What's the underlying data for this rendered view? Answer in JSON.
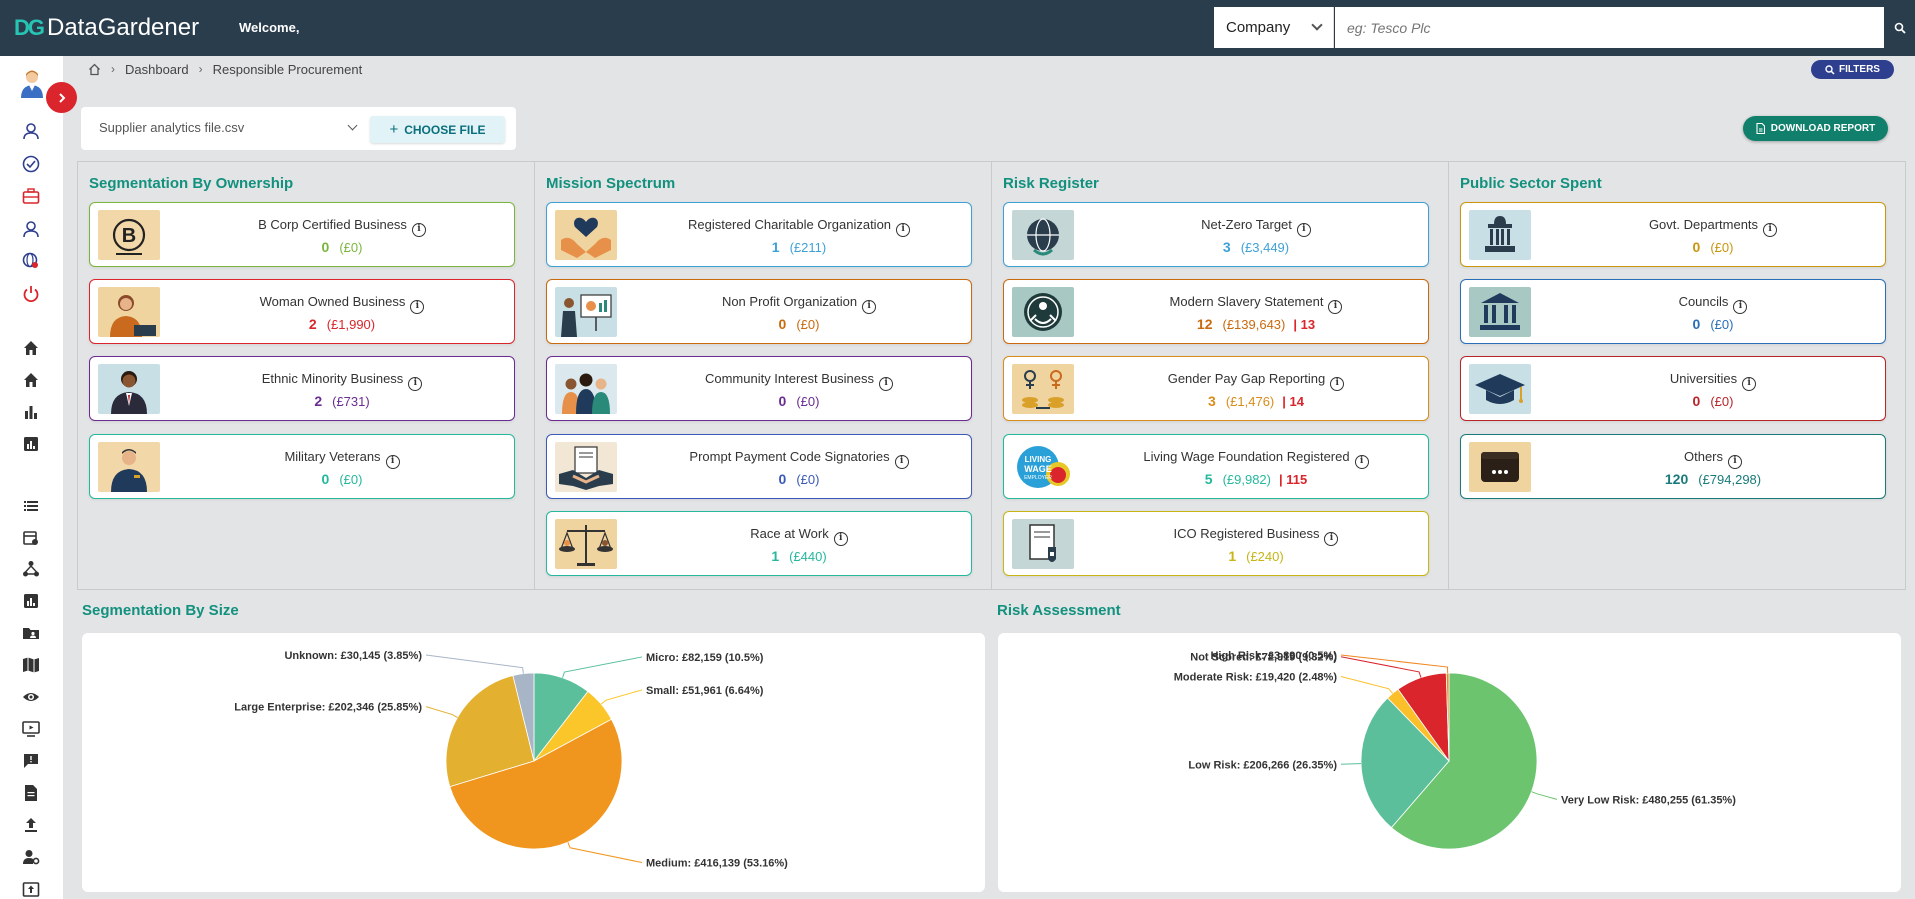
{
  "app": {
    "brand_mark": "DG",
    "brand_name": "DataGardener",
    "welcome": "Welcome,"
  },
  "search": {
    "type": "Company",
    "placeholder": "eg: Tesco Plc"
  },
  "breadcrumb": {
    "items": [
      "Dashboard",
      "Responsible Procurement"
    ]
  },
  "filters_label": "FILTERS",
  "file": {
    "selected": "Supplier analytics file.csv",
    "choose_label": "CHOOSE FILE"
  },
  "download_label": "DOWNLOAD REPORT",
  "sidebar_icons": [
    "user-avatar-icon",
    "user-icon",
    "check-circle-icon",
    "briefcase-icon",
    "user-outline-icon",
    "globe-search-icon",
    "power-icon",
    "home-icon",
    "home-alt-icon",
    "bar-chart-icon",
    "analytics-icon",
    "list-icon",
    "calendar-search-icon",
    "network-icon",
    "report-icon",
    "folder-user-icon",
    "map-icon",
    "eye-icon",
    "monitor-icon",
    "feedback-icon",
    "document-icon",
    "upload-icon",
    "user-settings-icon",
    "export-icon"
  ],
  "panels": [
    {
      "title": "Segmentation By Ownership",
      "cards": [
        {
          "icon": "bcorp-icon",
          "label": "B Corp Certified Business",
          "count": "0",
          "amount": "(£0)",
          "extra": "",
          "color": "#7ab63f",
          "bg": "#f2d7a8"
        },
        {
          "icon": "woman-owner-icon",
          "label": "Woman Owned Business",
          "count": "2",
          "amount": "(£1,990)",
          "extra": "",
          "color": "#d9252b",
          "bg": "#f0d4a0"
        },
        {
          "icon": "ethnic-minority-icon",
          "label": "Ethnic Minority Business",
          "count": "2",
          "amount": "(£731)",
          "extra": "",
          "color": "#6a2c91",
          "bg": "#c9dfe6"
        },
        {
          "icon": "military-veteran-icon",
          "label": "Military Veterans",
          "count": "0",
          "amount": "(£0)",
          "extra": "",
          "color": "#25b89c",
          "bg": "#f2d7a8"
        }
      ]
    },
    {
      "title": "Mission Spectrum",
      "cards": [
        {
          "icon": "charity-hands-icon",
          "label": "Registered Charitable Organization",
          "count": "1",
          "amount": "(£211)",
          "extra": "",
          "color": "#3ea1d6",
          "bg": "#f0d4a0"
        },
        {
          "icon": "presentation-icon",
          "label": "Non Profit Organization",
          "count": "0",
          "amount": "(£0)",
          "extra": "",
          "color": "#c96a0e",
          "bg": "#c9dfe6"
        },
        {
          "icon": "community-icon",
          "label": "Community Interest Business",
          "count": "0",
          "amount": "(£0)",
          "extra": "",
          "color": "#6a2c91",
          "bg": "#dbe9ef"
        },
        {
          "icon": "handshake-icon",
          "label": "Prompt Payment Code Signatories",
          "count": "0",
          "amount": "(£0)",
          "extra": "",
          "color": "#3a59b8",
          "bg": "#f2e7d5"
        },
        {
          "icon": "scales-icon",
          "label": "Race at Work",
          "count": "1",
          "amount": "(£440)",
          "extra": "",
          "color": "#25b89c",
          "bg": "#f0d4a0"
        }
      ]
    },
    {
      "title": "Risk Register",
      "cards": [
        {
          "icon": "net-zero-globe-icon",
          "label": "Net-Zero Target",
          "count": "3",
          "amount": "(£3,449)",
          "extra": "",
          "color": "#3ea1d6",
          "bg": "#c4d6d6"
        },
        {
          "icon": "modern-slavery-icon",
          "label": "Modern Slavery Statement",
          "count": "12",
          "amount": "(£139,643)",
          "extra": "| 13",
          "color": "#c96a0e",
          "bg": "#a8c8c4"
        },
        {
          "icon": "gender-pay-icon",
          "label": "Gender Pay Gap Reporting",
          "count": "3",
          "amount": "(£1,476)",
          "extra": "| 14",
          "color": "#d98c1a",
          "bg": "#f0d4a0"
        },
        {
          "icon": "living-wage-icon",
          "label": "Living Wage Foundation Registered",
          "count": "5",
          "amount": "(£9,982)",
          "extra": "| 115",
          "color": "#25b89c",
          "bg": "#ffffff"
        },
        {
          "icon": "ico-document-icon",
          "label": "ICO Registered Business",
          "count": "1",
          "amount": "(£240)",
          "extra": "",
          "color": "#c7b516",
          "bg": "#c4d6d6"
        }
      ]
    },
    {
      "title": "Public Sector Spent",
      "cards": [
        {
          "icon": "govt-building-icon",
          "label": "Govt. Departments",
          "count": "0",
          "amount": "(£0)",
          "extra": "",
          "color": "#c9960e",
          "bg": "#c9dfe6"
        },
        {
          "icon": "council-building-icon",
          "label": "Councils",
          "count": "0",
          "amount": "(£0)",
          "extra": "",
          "color": "#2a6fb8",
          "bg": "#a8c8c4"
        },
        {
          "icon": "graduation-cap-icon",
          "label": "Universities",
          "count": "0",
          "amount": "(£0)",
          "extra": "",
          "color": "#b8252b",
          "bg": "#c9dfe6"
        },
        {
          "icon": "wallet-icon",
          "label": "Others",
          "count": "120",
          "amount": "(£794,298)",
          "extra": "",
          "color": "#1a7a7a",
          "bg": "#f0d4a0"
        }
      ]
    }
  ],
  "chart_data": [
    {
      "type": "pie",
      "title": "Segmentation By Size",
      "slices": [
        {
          "label": "Micro: £82,159 (10.5%)",
          "value": 10.5,
          "color": "#5bbf9b"
        },
        {
          "label": "Small: £51,961 (6.64%)",
          "value": 6.64,
          "color": "#fbc62a"
        },
        {
          "label": "Medium: £416,139 (53.16%)",
          "value": 53.16,
          "color": "#f0961e"
        },
        {
          "label": "Large Enterprise: £202,346 (25.85%)",
          "value": 25.85,
          "color": "#e3b030"
        },
        {
          "label": "Unknown: £30,145 (3.85%)",
          "value": 3.85,
          "color": "#a7b5c7"
        }
      ]
    },
    {
      "type": "pie",
      "title": "Risk Assessment",
      "slices": [
        {
          "label": "Very Low Risk: £480,255 (61.35%)",
          "value": 61.35,
          "color": "#6cc46f"
        },
        {
          "label": "Low Risk: £206,266 (26.35%)",
          "value": 26.35,
          "color": "#5bbf9b"
        },
        {
          "label": "Moderate Risk: £19,420 (2.48%)",
          "value": 2.48,
          "color": "#fbbf2a"
        },
        {
          "label": "Not Scored: £72,919 (9.32%)",
          "value": 9.32,
          "color": "#d9252b"
        },
        {
          "label": "High Risk: £3,890 (0.5%)",
          "value": 0.5,
          "color": "#f0861e"
        }
      ]
    }
  ]
}
